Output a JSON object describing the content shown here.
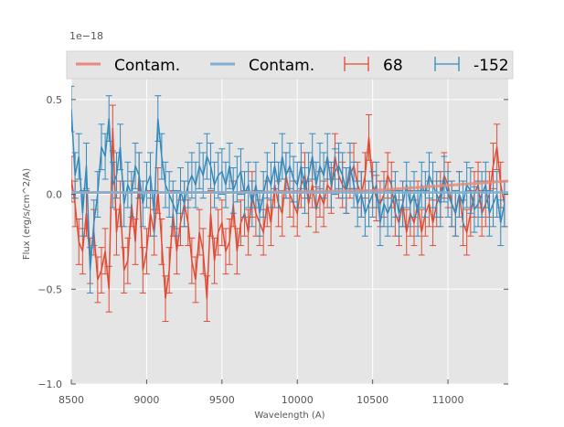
{
  "chart_data": {
    "type": "line",
    "title": "",
    "xlabel": "Wavelength (A)",
    "ylabel": "Flux (erg/s/cm^2/A)",
    "offset_text": "1e−18",
    "xlim": [
      8500,
      11400
    ],
    "ylim": [
      -1.0,
      0.75
    ],
    "xticks": [
      8500,
      9000,
      9500,
      10000,
      10500,
      11000
    ],
    "xtick_labels": [
      "8500",
      "9000",
      "9500",
      "10000",
      "10500",
      "11000"
    ],
    "yticks": [
      0.5,
      0.0,
      -0.5,
      -1.0
    ],
    "ytick_labels": [
      "0.5",
      "0.0",
      "−0.5",
      "−1.0"
    ],
    "grid": true,
    "legend": {
      "placement": "top",
      "entries": [
        "Contam.",
        "Contam.",
        "68",
        "-152"
      ]
    },
    "colors": {
      "red": "#E24A33",
      "blue": "#348ABD",
      "red_light": "#E8897A",
      "blue_light": "#7FB0D3",
      "axes_bg": "#E5E5E5"
    },
    "series": [
      {
        "name": "Contam.",
        "kind": "line",
        "color": "#E8897A",
        "x": [
          8500,
          9600,
          10500,
          11400
        ],
        "y": [
          0.01,
          0.01,
          0.02,
          0.07
        ]
      },
      {
        "name": "Contam.",
        "kind": "line",
        "color": "#7FB0D3",
        "x": [
          8500,
          11400
        ],
        "y": [
          0.01,
          0.01
        ]
      },
      {
        "name": "68",
        "kind": "errorbar",
        "color": "#E24A33",
        "x_start": 8500,
        "x_step": 25,
        "y": [
          0.08,
          -0.05,
          -0.25,
          -0.3,
          -0.1,
          -0.35,
          -0.2,
          -0.45,
          -0.4,
          -0.3,
          -0.5,
          0.35,
          -0.2,
          -0.05,
          -0.4,
          -0.35,
          -0.05,
          -0.25,
          0.1,
          -0.4,
          -0.3,
          -0.1,
          -0.2,
          0.02,
          -0.25,
          -0.55,
          -0.4,
          -0.1,
          -0.3,
          -0.15,
          -0.05,
          -0.15,
          -0.35,
          -0.45,
          -0.2,
          -0.3,
          -0.55,
          -0.1,
          -0.35,
          -0.2,
          -0.15,
          -0.3,
          -0.25,
          -0.05,
          -0.3,
          -0.15,
          -0.1,
          -0.2,
          0.0,
          -0.1,
          -0.15,
          -0.2,
          -0.05,
          -0.15,
          0.05,
          -0.05,
          -0.1,
          0.1,
          0.0,
          -0.05,
          -0.1,
          0.05,
          0.1,
          -0.05,
          0.05,
          -0.08,
          0.0,
          -0.05,
          0.05,
          0.02,
          0.2,
          0.1,
          0.05,
          0.02,
          0.1,
          0.15,
          0.05,
          0.0,
          0.1,
          0.3,
          0.05,
          -0.02,
          -0.05,
          0.0,
          0.1,
          0.05,
          -0.1,
          -0.15,
          -0.05,
          -0.2,
          -0.1,
          -0.15,
          -0.05,
          -0.2,
          -0.1,
          -0.05,
          -0.15,
          -0.05,
          0.0,
          0.1,
          0.05,
          -0.05,
          -0.1,
          0.0,
          -0.15,
          -0.2,
          -0.1,
          0.0,
          0.05,
          -0.1,
          -0.05,
          0.0,
          0.15,
          0.25,
          0.05,
          -0.05
        ],
        "err": 0.12
      },
      {
        "name": "-152",
        "kind": "errorbar",
        "color": "#348ABD",
        "x_start": 8500,
        "x_step": 25,
        "y": [
          0.45,
          0.1,
          0.2,
          -0.1,
          0.15,
          -0.4,
          -0.15,
          0.0,
          0.25,
          0.2,
          0.4,
          0.05,
          0.1,
          0.25,
          -0.05,
          0.05,
          0.0,
          0.15,
          0.1,
          -0.05,
          0.05,
          0.1,
          -0.1,
          0.4,
          0.2,
          0.05,
          0.0,
          -0.05,
          -0.1,
          0.02,
          -0.05,
          0.05,
          0.1,
          0.05,
          0.15,
          0.1,
          0.2,
          0.15,
          0.05,
          0.1,
          0.12,
          0.05,
          0.15,
          0.02,
          0.08,
          0.12,
          0.0,
          0.05,
          -0.05,
          0.05,
          -0.1,
          0.0,
          0.1,
          0.05,
          0.15,
          0.05,
          0.2,
          0.1,
          0.15,
          0.08,
          0.05,
          0.15,
          0.02,
          0.1,
          0.2,
          0.05,
          0.15,
          0.1,
          0.2,
          0.05,
          0.12,
          0.15,
          0.1,
          0.02,
          0.15,
          0.05,
          -0.05,
          0.0,
          -0.1,
          -0.05,
          0.0,
          0.05,
          -0.15,
          -0.05,
          -0.1,
          -0.05,
          0.0,
          -0.1,
          -0.05,
          0.05,
          -0.05,
          0.0,
          -0.1,
          0.05,
          0.0,
          0.1,
          0.05,
          0.0,
          -0.05,
          0.08,
          0.0,
          -0.05,
          -0.1,
          0.0,
          -0.05,
          0.05,
          0.02,
          -0.08,
          -0.05,
          0.0,
          0.05,
          -0.1,
          -0.05,
          0.0,
          -0.15,
          -0.05
        ],
        "err": 0.12
      }
    ]
  }
}
